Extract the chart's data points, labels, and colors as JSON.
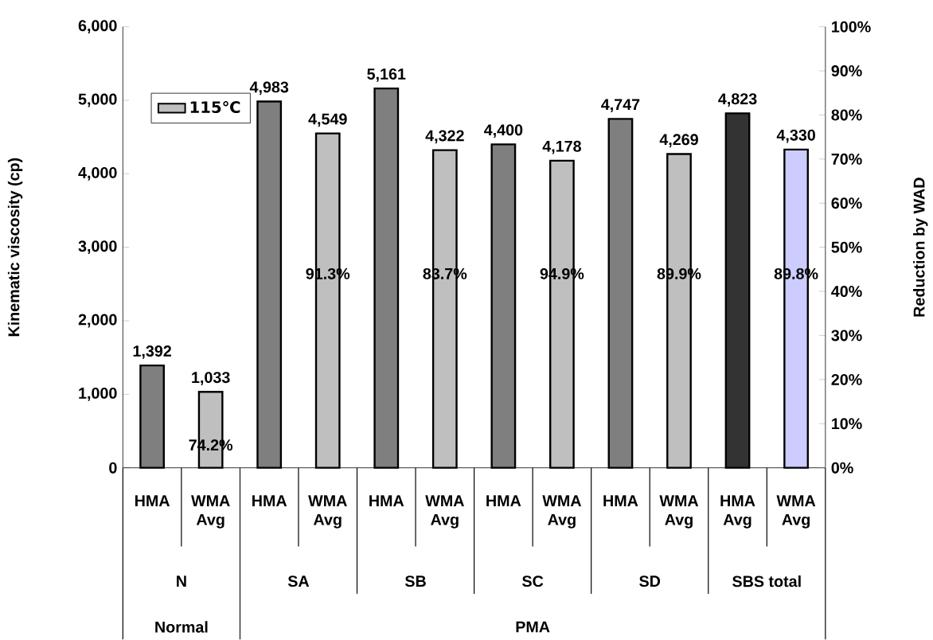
{
  "chart_data": {
    "type": "bar",
    "ylabel": "Kinematic viscosity (cp)",
    "y2label": "Reduction by WAD",
    "categories": [
      "HMA",
      "WMA Avg",
      "HMA",
      "WMA Avg",
      "HMA",
      "WMA Avg",
      "HMA",
      "WMA Avg",
      "HMA",
      "WMA Avg",
      "HMA Avg",
      "WMA Avg"
    ],
    "series": [
      {
        "name": "115℃",
        "color": "#bfbfbf",
        "colors": [
          "#7f7f7f",
          "#bfbfbf",
          "#7f7f7f",
          "#bfbfbf",
          "#7f7f7f",
          "#bfbfbf",
          "#7f7f7f",
          "#bfbfbf",
          "#7f7f7f",
          "#bfbfbf",
          "#333333",
          "#ccccff"
        ],
        "values": [
          1392,
          1033,
          4983,
          4549,
          5161,
          4322,
          4400,
          4178,
          4747,
          4269,
          4823,
          4330
        ],
        "value_labels": [
          "1,392",
          "1,033",
          "4,983",
          "4,549",
          "5,161",
          "4,322",
          "4,400",
          "4,178",
          "4,747",
          "4,269",
          "4,823",
          "4,330"
        ]
      }
    ],
    "ylim": [
      0,
      6000
    ],
    "yticks": [
      0,
      {
        "value": 1000,
        "label": "1,000"
      },
      {
        "value": 2000,
        "label": "2,000"
      },
      {
        "value": 3000,
        "label": "3,000"
      },
      {
        "value": 4000,
        "label": "4,000"
      },
      {
        "value": 5000,
        "label": "5,000"
      },
      {
        "value": 6000,
        "label": "6,000"
      }
    ],
    "y2lim": [
      0,
      100
    ],
    "y2ticks": [
      {
        "value": 0,
        "label": "0%"
      },
      {
        "value": 10,
        "label": "10%"
      },
      {
        "value": 20,
        "label": "20%"
      },
      {
        "value": 30,
        "label": "30%"
      },
      {
        "value": 40,
        "label": "40%"
      },
      {
        "value": 50,
        "label": "50%"
      },
      {
        "value": 60,
        "label": "60%"
      },
      {
        "value": 70,
        "label": "70%"
      },
      {
        "value": 80,
        "label": "80%"
      },
      {
        "value": 90,
        "label": "90%"
      },
      {
        "value": 100,
        "label": "100%"
      }
    ],
    "legend": "top left",
    "annotations": [
      "74.2%",
      "91.3%",
      "83.7%",
      "94.9%",
      "89.9%",
      "89.8%",
      "N",
      "SA",
      "SB",
      "SC",
      "SD",
      "SBS total",
      "Normal",
      "PMA"
    ]
  }
}
